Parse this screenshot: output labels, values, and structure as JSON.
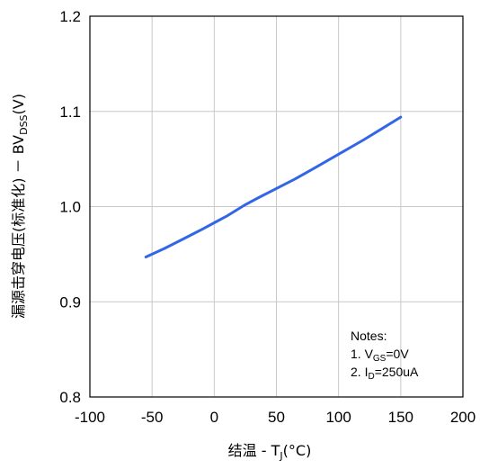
{
  "chart_data": {
    "type": "line",
    "title": "",
    "xlabel_main": "结温 - T",
    "xlabel_sub": "J",
    "xlabel_unit": "(°C)",
    "ylabel_main": "漏源击穿电压(标准化) － BV",
    "ylabel_sub": "DSS",
    "ylabel_unit": "(V)",
    "xlim": [
      -100,
      200
    ],
    "ylim": [
      0.8,
      1.2
    ],
    "xticks": [
      -100,
      -50,
      0,
      50,
      100,
      150,
      200
    ],
    "yticks": [
      0.8,
      0.9,
      1.0,
      1.1,
      1.2
    ],
    "xtick_labels": [
      "-100",
      "-50",
      "0",
      "50",
      "100",
      "150",
      "200"
    ],
    "ytick_labels": [
      "0.8",
      "0.9",
      "1.0",
      "1.1",
      "1.2"
    ],
    "grid": true,
    "series": [
      {
        "color": "#3366e6",
        "x": [
          -55,
          -40,
          -25,
          -10,
          0,
          10,
          25,
          35,
          50,
          65,
          80,
          100,
          120,
          135,
          150
        ],
        "y": [
          0.947,
          0.956,
          0.966,
          0.976,
          0.983,
          0.99,
          1.002,
          1.009,
          1.019,
          1.029,
          1.04,
          1.055,
          1.07,
          1.082,
          1.094
        ]
      }
    ],
    "notes": {
      "title": "Notes:",
      "line1_prefix": "1. V",
      "line1_sub": "GS",
      "line1_suffix": "=0V",
      "line2_prefix": "2. I",
      "line2_sub": "D",
      "line2_suffix": "=250uA"
    }
  }
}
